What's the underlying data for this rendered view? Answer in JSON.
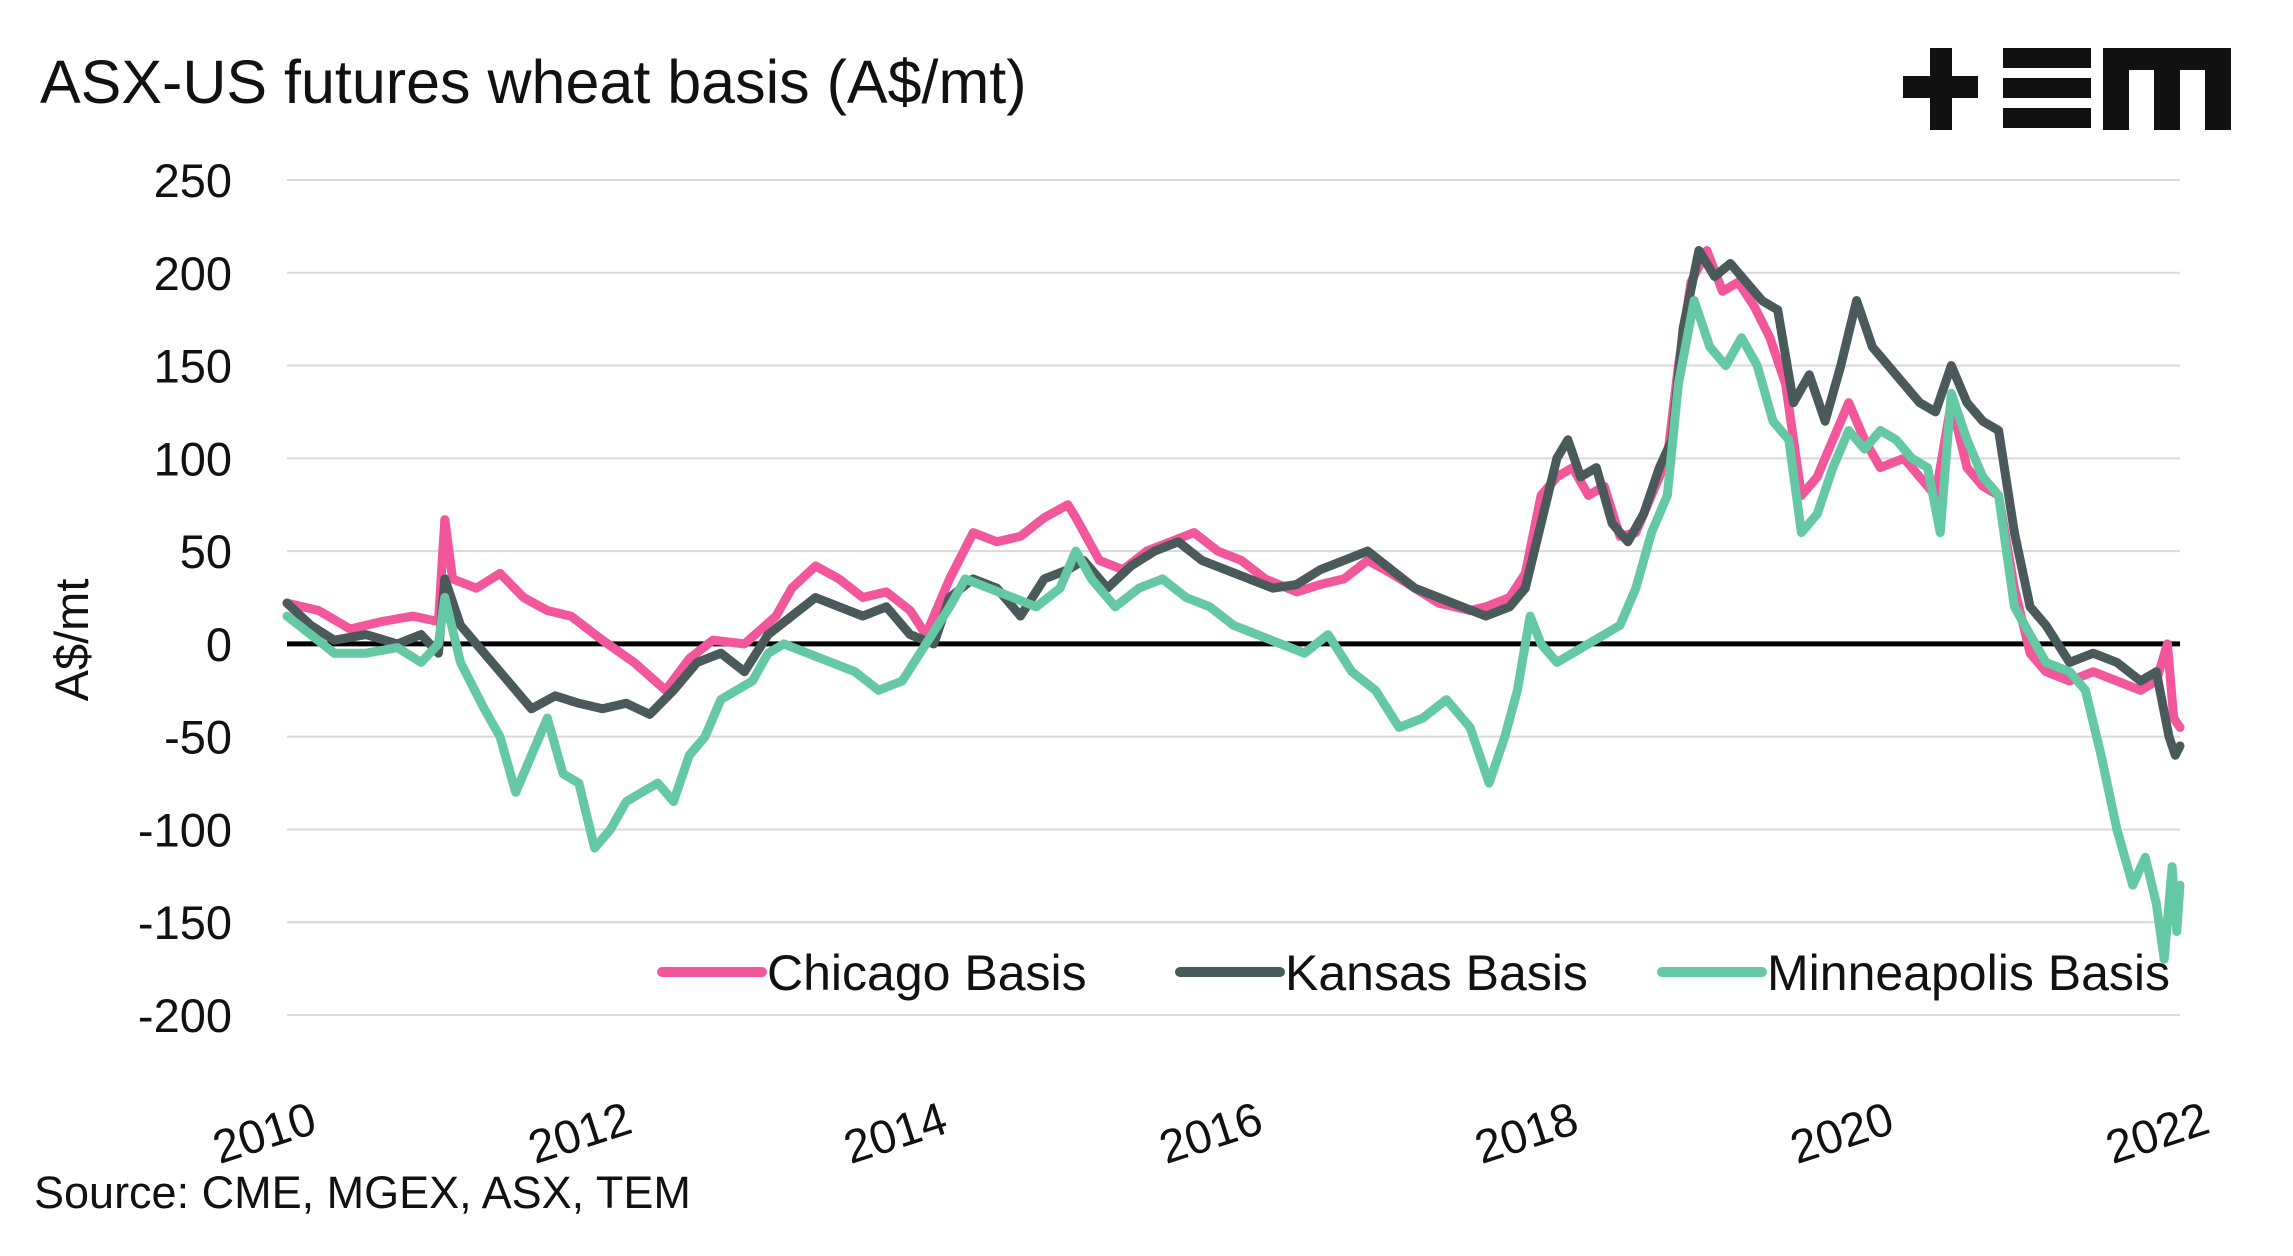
{
  "source": "Source: CME, MGEX, ASX, TEM",
  "logo_alt": "+EM",
  "chart_data": {
    "type": "line",
    "title": "ASX-US futures wheat basis (A$/mt)",
    "xlabel": "",
    "ylabel": "A$/mt",
    "xlim": [
      2010,
      2022
    ],
    "ylim": [
      -200,
      250
    ],
    "y_ticks": [
      250,
      200,
      150,
      100,
      50,
      0,
      -50,
      -100,
      -150,
      -200
    ],
    "x_ticks": [
      2010,
      2012,
      2014,
      2016,
      2018,
      2020,
      2022
    ],
    "grid": "horizontal",
    "zero_line": true,
    "legend_position": "bottom-right",
    "series": [
      {
        "name": "Chicago Basis",
        "color": "#f2569b",
        "points": [
          [
            2010.0,
            22
          ],
          [
            2010.2,
            18
          ],
          [
            2010.4,
            8
          ],
          [
            2010.6,
            12
          ],
          [
            2010.8,
            15
          ],
          [
            2010.96,
            12
          ],
          [
            2011.0,
            67
          ],
          [
            2011.05,
            35
          ],
          [
            2011.2,
            30
          ],
          [
            2011.35,
            38
          ],
          [
            2011.5,
            25
          ],
          [
            2011.65,
            18
          ],
          [
            2011.8,
            15
          ],
          [
            2012.0,
            2
          ],
          [
            2012.2,
            -10
          ],
          [
            2012.4,
            -25
          ],
          [
            2012.55,
            -8
          ],
          [
            2012.7,
            2
          ],
          [
            2012.9,
            0
          ],
          [
            2013.1,
            15
          ],
          [
            2013.2,
            30
          ],
          [
            2013.35,
            42
          ],
          [
            2013.5,
            35
          ],
          [
            2013.65,
            25
          ],
          [
            2013.8,
            28
          ],
          [
            2013.95,
            18
          ],
          [
            2014.05,
            5
          ],
          [
            2014.2,
            35
          ],
          [
            2014.35,
            60
          ],
          [
            2014.5,
            55
          ],
          [
            2014.65,
            58
          ],
          [
            2014.8,
            68
          ],
          [
            2014.95,
            75
          ],
          [
            2015.0,
            68
          ],
          [
            2015.15,
            45
          ],
          [
            2015.3,
            40
          ],
          [
            2015.45,
            50
          ],
          [
            2015.6,
            55
          ],
          [
            2015.75,
            60
          ],
          [
            2015.9,
            50
          ],
          [
            2016.05,
            45
          ],
          [
            2016.2,
            35
          ],
          [
            2016.4,
            28
          ],
          [
            2016.55,
            32
          ],
          [
            2016.7,
            35
          ],
          [
            2016.85,
            45
          ],
          [
            2017.0,
            38
          ],
          [
            2017.15,
            30
          ],
          [
            2017.3,
            22
          ],
          [
            2017.5,
            18
          ],
          [
            2017.6,
            20
          ],
          [
            2017.75,
            25
          ],
          [
            2017.85,
            38
          ],
          [
            2017.95,
            80
          ],
          [
            2018.05,
            90
          ],
          [
            2018.15,
            95
          ],
          [
            2018.25,
            80
          ],
          [
            2018.35,
            85
          ],
          [
            2018.45,
            58
          ],
          [
            2018.55,
            60
          ],
          [
            2018.65,
            80
          ],
          [
            2018.75,
            100
          ],
          [
            2018.82,
            150
          ],
          [
            2018.9,
            195
          ],
          [
            2019.0,
            212
          ],
          [
            2019.1,
            190
          ],
          [
            2019.2,
            195
          ],
          [
            2019.3,
            182
          ],
          [
            2019.4,
            165
          ],
          [
            2019.5,
            140
          ],
          [
            2019.6,
            80
          ],
          [
            2019.7,
            90
          ],
          [
            2019.8,
            110
          ],
          [
            2019.9,
            130
          ],
          [
            2020.0,
            110
          ],
          [
            2020.1,
            95
          ],
          [
            2020.25,
            100
          ],
          [
            2020.35,
            90
          ],
          [
            2020.45,
            80
          ],
          [
            2020.55,
            130
          ],
          [
            2020.65,
            95
          ],
          [
            2020.75,
            85
          ],
          [
            2020.85,
            80
          ],
          [
            2020.95,
            30
          ],
          [
            2021.05,
            -5
          ],
          [
            2021.15,
            -15
          ],
          [
            2021.3,
            -20
          ],
          [
            2021.45,
            -15
          ],
          [
            2021.6,
            -20
          ],
          [
            2021.75,
            -25
          ],
          [
            2021.85,
            -20
          ],
          [
            2021.92,
            0
          ],
          [
            2021.96,
            -40
          ],
          [
            2022.0,
            -45
          ]
        ]
      },
      {
        "name": "Kansas Basis",
        "color": "#4a5a5a",
        "points": [
          [
            2010.0,
            22
          ],
          [
            2010.15,
            10
          ],
          [
            2010.3,
            2
          ],
          [
            2010.5,
            5
          ],
          [
            2010.7,
            0
          ],
          [
            2010.85,
            5
          ],
          [
            2010.96,
            -5
          ],
          [
            2011.0,
            35
          ],
          [
            2011.1,
            10
          ],
          [
            2011.25,
            -5
          ],
          [
            2011.4,
            -20
          ],
          [
            2011.55,
            -35
          ],
          [
            2011.7,
            -28
          ],
          [
            2011.85,
            -32
          ],
          [
            2012.0,
            -35
          ],
          [
            2012.15,
            -32
          ],
          [
            2012.3,
            -38
          ],
          [
            2012.45,
            -25
          ],
          [
            2012.6,
            -10
          ],
          [
            2012.75,
            -5
          ],
          [
            2012.9,
            -15
          ],
          [
            2013.05,
            5
          ],
          [
            2013.2,
            15
          ],
          [
            2013.35,
            25
          ],
          [
            2013.5,
            20
          ],
          [
            2013.65,
            15
          ],
          [
            2013.8,
            20
          ],
          [
            2013.95,
            5
          ],
          [
            2014.1,
            0
          ],
          [
            2014.2,
            25
          ],
          [
            2014.35,
            35
          ],
          [
            2014.5,
            30
          ],
          [
            2014.65,
            15
          ],
          [
            2014.8,
            35
          ],
          [
            2014.95,
            40
          ],
          [
            2015.05,
            45
          ],
          [
            2015.2,
            30
          ],
          [
            2015.35,
            42
          ],
          [
            2015.5,
            50
          ],
          [
            2015.65,
            55
          ],
          [
            2015.8,
            45
          ],
          [
            2015.95,
            40
          ],
          [
            2016.1,
            35
          ],
          [
            2016.25,
            30
          ],
          [
            2016.4,
            32
          ],
          [
            2016.55,
            40
          ],
          [
            2016.7,
            45
          ],
          [
            2016.85,
            50
          ],
          [
            2017.0,
            40
          ],
          [
            2017.15,
            30
          ],
          [
            2017.3,
            25
          ],
          [
            2017.45,
            20
          ],
          [
            2017.6,
            15
          ],
          [
            2017.75,
            20
          ],
          [
            2017.85,
            30
          ],
          [
            2017.95,
            65
          ],
          [
            2018.05,
            100
          ],
          [
            2018.12,
            110
          ],
          [
            2018.2,
            90
          ],
          [
            2018.3,
            95
          ],
          [
            2018.4,
            65
          ],
          [
            2018.5,
            55
          ],
          [
            2018.6,
            70
          ],
          [
            2018.7,
            95
          ],
          [
            2018.78,
            110
          ],
          [
            2018.85,
            170
          ],
          [
            2018.95,
            212
          ],
          [
            2019.05,
            198
          ],
          [
            2019.15,
            205
          ],
          [
            2019.25,
            195
          ],
          [
            2019.35,
            185
          ],
          [
            2019.45,
            180
          ],
          [
            2019.55,
            130
          ],
          [
            2019.65,
            145
          ],
          [
            2019.75,
            120
          ],
          [
            2019.85,
            150
          ],
          [
            2019.95,
            185
          ],
          [
            2020.05,
            160
          ],
          [
            2020.15,
            150
          ],
          [
            2020.25,
            140
          ],
          [
            2020.35,
            130
          ],
          [
            2020.45,
            125
          ],
          [
            2020.55,
            150
          ],
          [
            2020.65,
            130
          ],
          [
            2020.75,
            120
          ],
          [
            2020.85,
            115
          ],
          [
            2020.95,
            60
          ],
          [
            2021.05,
            20
          ],
          [
            2021.15,
            10
          ],
          [
            2021.3,
            -10
          ],
          [
            2021.45,
            -5
          ],
          [
            2021.6,
            -10
          ],
          [
            2021.75,
            -20
          ],
          [
            2021.85,
            -15
          ],
          [
            2021.93,
            -50
          ],
          [
            2021.97,
            -60
          ],
          [
            2022.0,
            -55
          ]
        ]
      },
      {
        "name": "Minneapolis Basis",
        "color": "#64c8a5",
        "points": [
          [
            2010.0,
            15
          ],
          [
            2010.15,
            5
          ],
          [
            2010.3,
            -5
          ],
          [
            2010.5,
            -5
          ],
          [
            2010.7,
            -2
          ],
          [
            2010.85,
            -10
          ],
          [
            2010.96,
            0
          ],
          [
            2011.0,
            25
          ],
          [
            2011.1,
            -10
          ],
          [
            2011.25,
            -35
          ],
          [
            2011.35,
            -50
          ],
          [
            2011.45,
            -80
          ],
          [
            2011.55,
            -60
          ],
          [
            2011.65,
            -40
          ],
          [
            2011.75,
            -70
          ],
          [
            2011.85,
            -75
          ],
          [
            2011.95,
            -110
          ],
          [
            2012.05,
            -100
          ],
          [
            2012.15,
            -85
          ],
          [
            2012.25,
            -80
          ],
          [
            2012.35,
            -75
          ],
          [
            2012.45,
            -85
          ],
          [
            2012.55,
            -60
          ],
          [
            2012.65,
            -50
          ],
          [
            2012.75,
            -30
          ],
          [
            2012.85,
            -25
          ],
          [
            2012.95,
            -20
          ],
          [
            2013.05,
            -5
          ],
          [
            2013.15,
            0
          ],
          [
            2013.3,
            -5
          ],
          [
            2013.45,
            -10
          ],
          [
            2013.6,
            -15
          ],
          [
            2013.75,
            -25
          ],
          [
            2013.9,
            -20
          ],
          [
            2014.05,
            0
          ],
          [
            2014.2,
            20
          ],
          [
            2014.3,
            35
          ],
          [
            2014.45,
            30
          ],
          [
            2014.6,
            25
          ],
          [
            2014.75,
            20
          ],
          [
            2014.9,
            30
          ],
          [
            2015.0,
            50
          ],
          [
            2015.1,
            35
          ],
          [
            2015.25,
            20
          ],
          [
            2015.4,
            30
          ],
          [
            2015.55,
            35
          ],
          [
            2015.7,
            25
          ],
          [
            2015.85,
            20
          ],
          [
            2016.0,
            10
          ],
          [
            2016.15,
            5
          ],
          [
            2016.3,
            0
          ],
          [
            2016.45,
            -5
          ],
          [
            2016.6,
            5
          ],
          [
            2016.75,
            -15
          ],
          [
            2016.9,
            -25
          ],
          [
            2017.05,
            -45
          ],
          [
            2017.2,
            -40
          ],
          [
            2017.35,
            -30
          ],
          [
            2017.5,
            -45
          ],
          [
            2017.62,
            -75
          ],
          [
            2017.72,
            -50
          ],
          [
            2017.8,
            -25
          ],
          [
            2017.88,
            15
          ],
          [
            2017.95,
            0
          ],
          [
            2018.05,
            -10
          ],
          [
            2018.15,
            -5
          ],
          [
            2018.25,
            0
          ],
          [
            2018.35,
            5
          ],
          [
            2018.45,
            10
          ],
          [
            2018.55,
            30
          ],
          [
            2018.65,
            60
          ],
          [
            2018.75,
            80
          ],
          [
            2018.82,
            140
          ],
          [
            2018.92,
            185
          ],
          [
            2019.02,
            160
          ],
          [
            2019.12,
            150
          ],
          [
            2019.22,
            165
          ],
          [
            2019.32,
            150
          ],
          [
            2019.42,
            120
          ],
          [
            2019.52,
            110
          ],
          [
            2019.6,
            60
          ],
          [
            2019.7,
            70
          ],
          [
            2019.8,
            95
          ],
          [
            2019.9,
            115
          ],
          [
            2020.0,
            105
          ],
          [
            2020.1,
            115
          ],
          [
            2020.2,
            110
          ],
          [
            2020.3,
            100
          ],
          [
            2020.4,
            95
          ],
          [
            2020.48,
            60
          ],
          [
            2020.55,
            135
          ],
          [
            2020.65,
            110
          ],
          [
            2020.75,
            90
          ],
          [
            2020.85,
            80
          ],
          [
            2020.95,
            20
          ],
          [
            2021.05,
            5
          ],
          [
            2021.15,
            -10
          ],
          [
            2021.3,
            -15
          ],
          [
            2021.4,
            -25
          ],
          [
            2021.5,
            -60
          ],
          [
            2021.6,
            -100
          ],
          [
            2021.7,
            -130
          ],
          [
            2021.78,
            -115
          ],
          [
            2021.85,
            -140
          ],
          [
            2021.9,
            -170
          ],
          [
            2021.95,
            -120
          ],
          [
            2021.98,
            -155
          ],
          [
            2022.0,
            -130
          ]
        ]
      }
    ]
  }
}
